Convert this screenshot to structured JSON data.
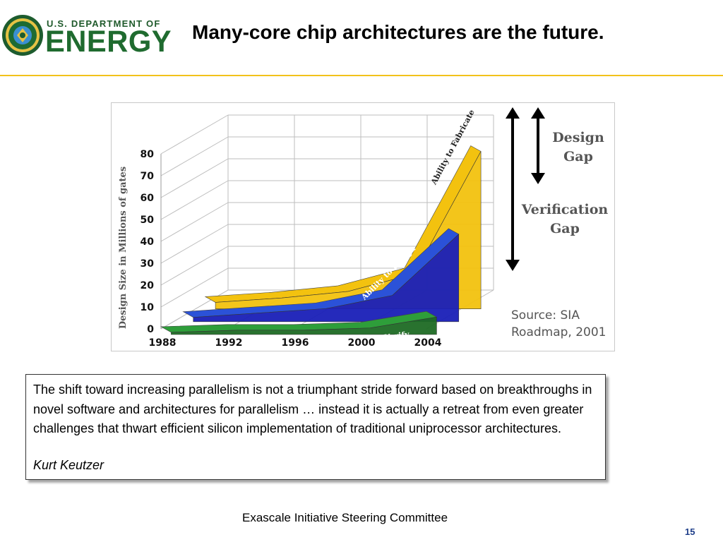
{
  "header": {
    "org_top": "U.S. DEPARTMENT OF",
    "org_main": "ENERGY",
    "title": "Many-core chip architectures are the future."
  },
  "chart_data": {
    "type": "area",
    "categories": [
      "1988",
      "1992",
      "1996",
      "2000",
      "2004"
    ],
    "ylabel": "Design Size in Millions of gates",
    "yticks": [
      "0",
      "10",
      "20",
      "30",
      "40",
      "50",
      "60",
      "70",
      "80"
    ],
    "ylim": [
      0,
      80
    ],
    "grid": true,
    "series": [
      {
        "name": "Ability to Verify",
        "values": [
          1,
          2,
          2,
          3,
          8
        ],
        "color": "#2e9e3a"
      },
      {
        "name": "Ability to Design",
        "values": [
          2,
          4,
          6,
          12,
          40
        ],
        "color": "#2b52d8"
      },
      {
        "name": "Ability to Fabricate",
        "values": [
          3,
          5,
          8,
          16,
          72
        ],
        "color": "#f3c20f"
      }
    ],
    "annotations": [
      {
        "label": "Design Gap"
      },
      {
        "label": "Verification Gap"
      }
    ],
    "source_line1": "Source: SIA",
    "source_line2": "Roadmap, 2001"
  },
  "quote": {
    "text": "The shift toward increasing parallelism is not a triumphant stride forward based on breakthroughs in novel software and architectures for parallelism … instead it is actually a retreat from even greater challenges that thwart efficient silicon implementation of traditional uniprocessor architectures.",
    "author": "Kurt Keutzer"
  },
  "footer": {
    "text": "Exascale Initiative Steering Committee",
    "page": "15"
  }
}
